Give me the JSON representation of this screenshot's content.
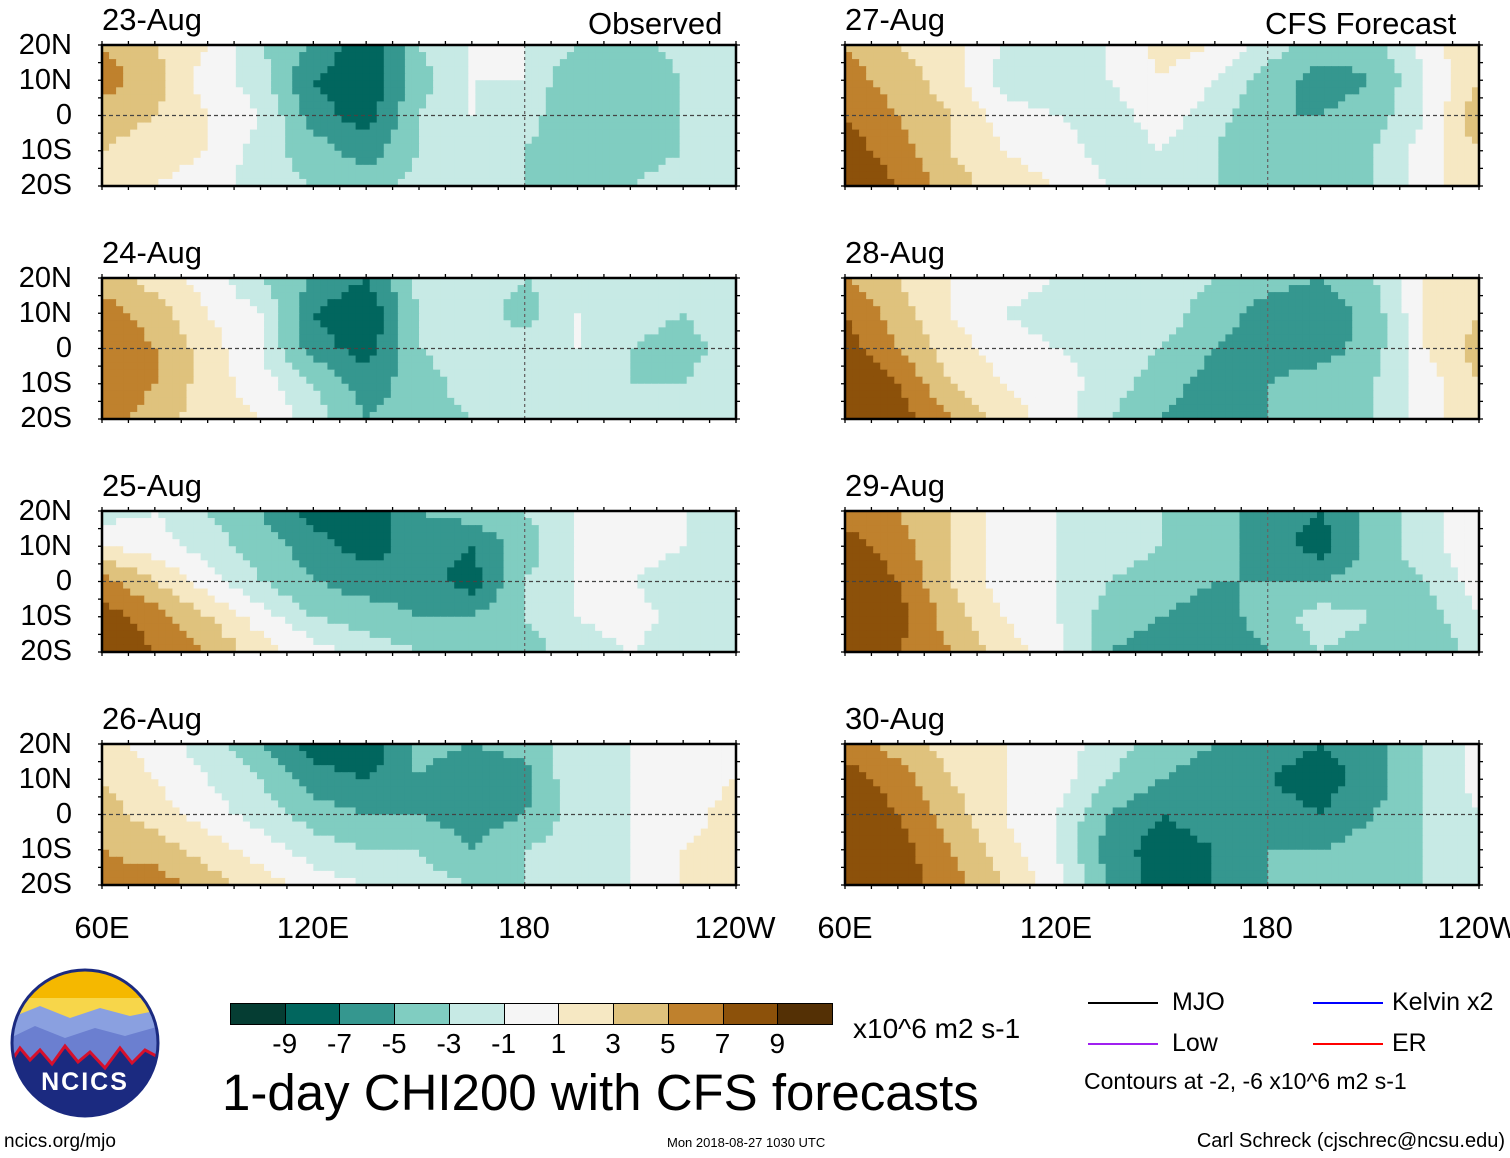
{
  "labels": {
    "observed": "Observed",
    "forecast": "CFS Forecast",
    "lat_ticks": [
      "20N",
      "10N",
      "0",
      "10S",
      "20S"
    ],
    "lon_ticks": [
      "60E",
      "120E",
      "180",
      "120W"
    ]
  },
  "colorbar": {
    "colors": [
      "#053d33",
      "#01665e",
      "#35978f",
      "#80cdc1",
      "#c7eae5",
      "#f5f5f5",
      "#f6e8c3",
      "#dfc27d",
      "#bf812d",
      "#8c510a",
      "#543005"
    ],
    "bounds": [
      -9,
      -7,
      -5,
      -3,
      -1,
      1,
      3,
      5,
      7,
      9
    ],
    "tick_labels": [
      "-9",
      "-7",
      "-5",
      "-3",
      "-1",
      "1",
      "3",
      "5",
      "7",
      "9"
    ],
    "units": "x10^6 m2 s-1"
  },
  "title": "1-day CHI200 with CFS forecasts",
  "timestamp": "Mon 2018-08-27 1030 UTC",
  "site": "ncics.org/mjo",
  "author": "Carl Schreck (cjschrec@ncsu.edu)",
  "logo_text": "NCICS",
  "legend": {
    "items": [
      {
        "label": "MJO",
        "color": "#000000"
      },
      {
        "label": "Kelvin x2",
        "color": "#0000ff"
      },
      {
        "label": "Low",
        "color": "#a020f0"
      },
      {
        "label": "ER",
        "color": "#ff0000"
      }
    ],
    "note": "Contours at -2, -6 x10^6 m2 s-1"
  },
  "chart_data": {
    "type": "heatmap",
    "title": "1-day CHI200 with CFS forecasts",
    "x": [
      60,
      75,
      90,
      105,
      120,
      135,
      150,
      165,
      180,
      195,
      210,
      225,
      240
    ],
    "x_tick_labels": [
      "60E",
      "120E",
      "180",
      "120W"
    ],
    "y": [
      20,
      10,
      0,
      -10,
      -20
    ],
    "y_tick_labels": [
      "20N",
      "10N",
      "0",
      "10S",
      "20S"
    ],
    "units": "x10^6 m2 s-1",
    "panels": [
      {
        "date": "23-Aug",
        "source": "Observed",
        "values": [
          [
            5,
            3,
            1,
            -3,
            -5,
            -9,
            -3,
            -1,
            -1,
            -3,
            -4,
            -2,
            -1
          ],
          [
            6,
            4,
            0,
            -2,
            -7,
            -9,
            -4,
            -1,
            -1,
            -5,
            -5,
            -3,
            -2
          ],
          [
            4,
            3,
            1,
            -1,
            -6,
            -8,
            -3,
            -1,
            -2,
            -5,
            -4,
            -3,
            -3
          ],
          [
            3,
            2,
            1,
            -2,
            -4,
            -6,
            -3,
            -2,
            -3,
            -5,
            -4,
            -3,
            -2
          ],
          [
            2,
            1,
            0,
            -2,
            -3,
            -4,
            -2,
            -3,
            -3,
            -4,
            -3,
            -2,
            -1
          ]
        ]
      },
      {
        "date": "24-Aug",
        "source": "Observed",
        "values": [
          [
            4,
            2,
            0,
            -3,
            -5,
            -7,
            -2,
            -1,
            -3,
            -2,
            -1,
            -3,
            -2
          ],
          [
            6,
            4,
            1,
            -1,
            -7,
            -9,
            -3,
            -2,
            -4,
            -1,
            -2,
            -3,
            -1
          ],
          [
            7,
            5,
            2,
            -1,
            -6,
            -8,
            -3,
            -2,
            -2,
            -1,
            -3,
            -4,
            -2
          ],
          [
            7,
            5,
            2,
            0,
            -3,
            -6,
            -4,
            -2,
            -3,
            -3,
            -3,
            -3,
            -1
          ],
          [
            6,
            4,
            2,
            1,
            -2,
            -5,
            -4,
            -3,
            -3,
            -2,
            -3,
            -2,
            -1
          ]
        ]
      },
      {
        "date": "25-Aug",
        "source": "Observed",
        "values": [
          [
            -2,
            -1,
            -3,
            -5,
            -8,
            -9,
            -5,
            -4,
            -3,
            -1,
            1,
            -1,
            -2
          ],
          [
            1,
            0,
            -2,
            -4,
            -6,
            -8,
            -6,
            -7,
            -4,
            -1,
            0,
            -1,
            -2
          ],
          [
            6,
            3,
            0,
            -3,
            -5,
            -6,
            -6,
            -8,
            -3,
            -1,
            -1,
            -2,
            -1
          ],
          [
            8,
            6,
            3,
            0,
            -3,
            -4,
            -5,
            -5,
            -3,
            -1,
            0,
            -2,
            -1
          ],
          [
            9,
            7,
            5,
            2,
            0,
            -2,
            -3,
            -4,
            -4,
            -2,
            -1,
            -2,
            -1
          ]
        ]
      },
      {
        "date": "26-Aug",
        "source": "Observed",
        "values": [
          [
            2,
            0,
            -2,
            -5,
            -8,
            -9,
            -4,
            -5,
            -4,
            -2,
            -1,
            -1,
            0
          ],
          [
            3,
            1,
            -1,
            -3,
            -6,
            -7,
            -5,
            -7,
            -6,
            -1,
            -1,
            0,
            1
          ],
          [
            4,
            2,
            0,
            -2,
            -4,
            -5,
            -5,
            -6,
            -5,
            -2,
            -1,
            0,
            2
          ],
          [
            5,
            4,
            2,
            0,
            -2,
            -3,
            -3,
            -5,
            -3,
            -2,
            -1,
            1,
            2
          ],
          [
            6,
            6,
            4,
            2,
            0,
            -1,
            -2,
            -3,
            -3,
            -2,
            -1,
            1,
            2
          ]
        ]
      },
      {
        "date": "27-Aug",
        "source": "CFS Forecast",
        "values": [
          [
            5,
            3,
            2,
            -1,
            -2,
            -1,
            2,
            1,
            -2,
            -4,
            -4,
            0,
            3
          ],
          [
            6,
            4,
            2,
            -2,
            -3,
            -1,
            1,
            -1,
            -4,
            -6,
            -5,
            -1,
            3
          ],
          [
            7,
            5,
            3,
            0,
            -1,
            -2,
            0,
            -2,
            -5,
            -5,
            -4,
            -1,
            5
          ],
          [
            8,
            6,
            3,
            1,
            0,
            -2,
            -1,
            -3,
            -5,
            -4,
            -3,
            0,
            3
          ],
          [
            9,
            7,
            4,
            2,
            1,
            -1,
            -2,
            -3,
            -4,
            -4,
            -3,
            0,
            3
          ]
        ]
      },
      {
        "date": "28-Aug",
        "source": "CFS Forecast",
        "values": [
          [
            5,
            3,
            1,
            0,
            -1,
            -2,
            -2,
            -3,
            -4,
            -5,
            -3,
            1,
            3
          ],
          [
            7,
            4,
            1,
            -1,
            -2,
            -2,
            -2,
            -4,
            -6,
            -7,
            -4,
            1,
            3
          ],
          [
            8,
            5,
            2,
            0,
            -1,
            -2,
            -3,
            -5,
            -6,
            -6,
            -4,
            1,
            4
          ],
          [
            9,
            7,
            3,
            1,
            0,
            -2,
            -4,
            -6,
            -5,
            -4,
            -3,
            0,
            3
          ],
          [
            9,
            8,
            5,
            2,
            0,
            -3,
            -5,
            -7,
            -5,
            -4,
            -3,
            0,
            3
          ]
        ]
      },
      {
        "date": "29-Aug",
        "source": "CFS Forecast",
        "values": [
          [
            6,
            5,
            3,
            0,
            -1,
            -2,
            -3,
            -4,
            -6,
            -7,
            -4,
            -2,
            1
          ],
          [
            8,
            6,
            3,
            0,
            -1,
            -2,
            -3,
            -4,
            -6,
            -8,
            -4,
            -2,
            1
          ],
          [
            9,
            7,
            3,
            0,
            -1,
            -3,
            -4,
            -5,
            -5,
            -5,
            -4,
            -3,
            0
          ],
          [
            9,
            8,
            4,
            1,
            -1,
            -4,
            -5,
            -6,
            -4,
            -2,
            -3,
            -4,
            -1
          ],
          [
            9,
            7,
            5,
            2,
            0,
            -5,
            -6,
            -7,
            -5,
            -3,
            -4,
            -5,
            -2
          ]
        ]
      },
      {
        "date": "30-Aug",
        "source": "CFS Forecast",
        "values": [
          [
            6,
            4,
            2,
            1,
            0,
            -2,
            -4,
            -5,
            -6,
            -7,
            -6,
            -3,
            0
          ],
          [
            8,
            6,
            3,
            1,
            0,
            -3,
            -5,
            -6,
            -7,
            -8,
            -6,
            -3,
            0
          ],
          [
            9,
            7,
            4,
            1,
            -1,
            -5,
            -7,
            -6,
            -6,
            -7,
            -5,
            -3,
            -1
          ],
          [
            9,
            8,
            5,
            2,
            -1,
            -6,
            -8,
            -7,
            -5,
            -5,
            -4,
            -3,
            -1
          ],
          [
            9,
            8,
            6,
            3,
            0,
            -5,
            -8,
            -7,
            -5,
            -4,
            -4,
            -3,
            -1
          ]
        ]
      }
    ]
  }
}
